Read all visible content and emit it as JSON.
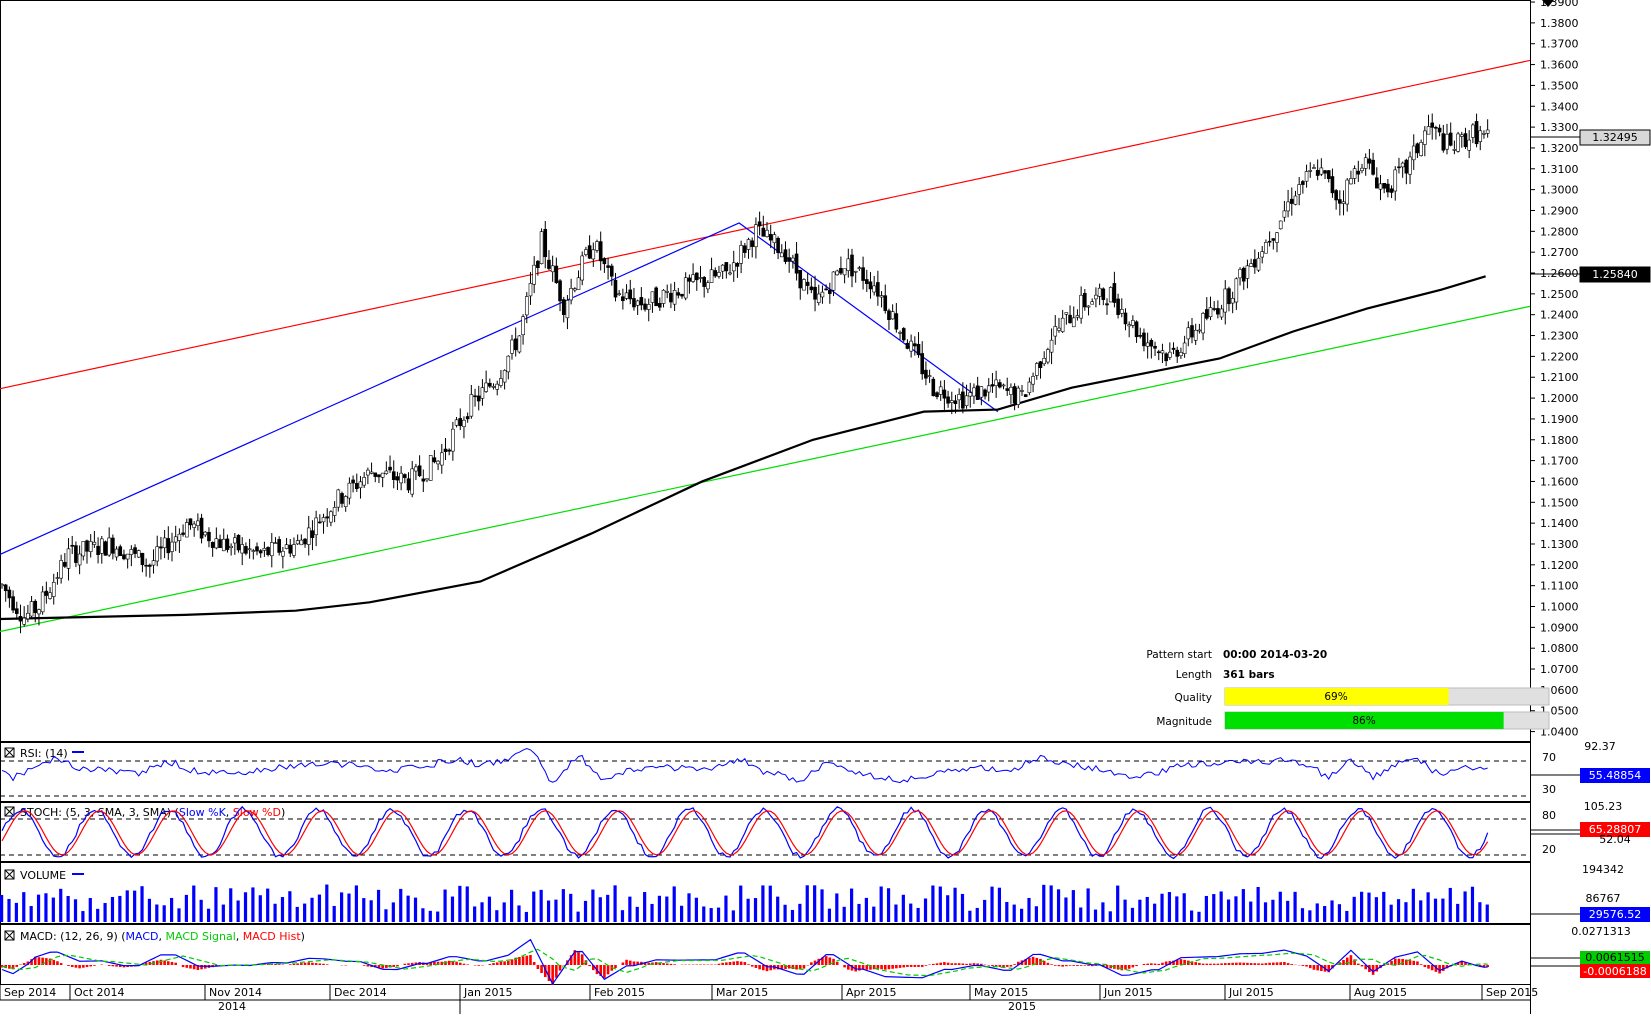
{
  "chart_data": {
    "type": "candlestick",
    "instrument_last_price": "1.32495",
    "moving_average_value": "1.25840",
    "x_ticks": [
      "Sep 2014",
      "Oct 2014",
      "Nov 2014",
      "Dec 2014",
      "Jan 2015",
      "Feb 2015",
      "Mar 2015",
      "Apr 2015",
      "May 2015",
      "Jun 2015",
      "Jul 2015",
      "Aug 2015",
      "Sep 2015"
    ],
    "year_labels": [
      "2014",
      "2015"
    ],
    "ylim": [
      1.035,
      1.3905
    ],
    "y_ticks": [
      "1.3900",
      "1.3800",
      "1.3700",
      "1.3600",
      "1.3500",
      "1.3400",
      "1.3300",
      "1.3200",
      "1.3100",
      "1.3000",
      "1.2900",
      "1.2800",
      "1.2700",
      "1.2600",
      "1.2500",
      "1.2400",
      "1.2300",
      "1.2200",
      "1.2100",
      "1.2000",
      "1.1900",
      "1.1800",
      "1.1700",
      "1.1600",
      "1.1500",
      "1.1400",
      "1.1300",
      "1.1200",
      "1.1100",
      "1.1000",
      "1.0900",
      "1.0800",
      "1.0700",
      "1.0600",
      "1.0500",
      "1.0400"
    ],
    "price_path": [
      [
        0,
        1.11
      ],
      [
        6,
        1.095
      ],
      [
        10,
        1.1
      ],
      [
        18,
        1.125
      ],
      [
        30,
        1.13
      ],
      [
        40,
        1.12
      ],
      [
        50,
        1.14
      ],
      [
        60,
        1.13
      ],
      [
        70,
        1.125
      ],
      [
        80,
        1.13
      ],
      [
        90,
        1.15
      ],
      [
        100,
        1.165
      ],
      [
        110,
        1.16
      ],
      [
        118,
        1.17
      ],
      [
        126,
        1.195
      ],
      [
        134,
        1.21
      ],
      [
        140,
        1.23
      ],
      [
        146,
        1.275
      ],
      [
        152,
        1.245
      ],
      [
        160,
        1.275
      ],
      [
        166,
        1.25
      ],
      [
        174,
        1.245
      ],
      [
        180,
        1.25
      ],
      [
        188,
        1.255
      ],
      [
        196,
        1.26
      ],
      [
        204,
        1.28
      ],
      [
        212,
        1.27
      ],
      [
        220,
        1.245
      ],
      [
        228,
        1.265
      ],
      [
        236,
        1.255
      ],
      [
        244,
        1.23
      ],
      [
        252,
        1.205
      ],
      [
        260,
        1.2
      ],
      [
        268,
        1.205
      ],
      [
        276,
        1.2
      ],
      [
        284,
        1.23
      ],
      [
        292,
        1.245
      ],
      [
        300,
        1.25
      ],
      [
        308,
        1.23
      ],
      [
        316,
        1.22
      ],
      [
        324,
        1.235
      ],
      [
        332,
        1.25
      ],
      [
        338,
        1.265
      ],
      [
        344,
        1.28
      ],
      [
        350,
        1.3
      ],
      [
        356,
        1.31
      ],
      [
        362,
        1.295
      ],
      [
        368,
        1.315
      ],
      [
        374,
        1.3
      ],
      [
        380,
        1.31
      ],
      [
        386,
        1.33
      ],
      [
        392,
        1.32
      ],
      [
        398,
        1.327
      ],
      [
        402,
        1.325
      ]
    ],
    "lines": {
      "red_resistance": {
        "from": [
          0,
          1.2045
        ],
        "to": [
          414,
          1.362
        ]
      },
      "green_support": {
        "from": [
          0,
          1.088
        ],
        "to": [
          414,
          1.244
        ]
      },
      "blue_pattern": [
        [
          0,
          1.125
        ],
        [
          200,
          1.284
        ],
        [
          270,
          1.1935
        ]
      ]
    },
    "ma_path": [
      [
        0,
        1.094
      ],
      [
        50,
        1.096
      ],
      [
        80,
        1.098
      ],
      [
        100,
        1.102
      ],
      [
        130,
        1.112
      ],
      [
        160,
        1.135
      ],
      [
        190,
        1.16
      ],
      [
        220,
        1.18
      ],
      [
        250,
        1.1935
      ],
      [
        270,
        1.1945
      ],
      [
        290,
        1.205
      ],
      [
        310,
        1.212
      ],
      [
        330,
        1.219
      ],
      [
        350,
        1.232
      ],
      [
        370,
        1.243
      ],
      [
        390,
        1.252
      ],
      [
        402,
        1.2584
      ]
    ],
    "pattern_info": {
      "start_label": "Pattern start",
      "start_value": "00:00 2014-03-20",
      "length_label": "Length",
      "length_value": "361 bars",
      "quality_label": "Quality",
      "quality_value": "69%",
      "quality": 0.69,
      "quality_color": "#ffff00",
      "magnitude_label": "Magnitude",
      "magnitude_value": "86%",
      "magnitude": 0.86,
      "magnitude_color": "#00e000"
    },
    "panels": {
      "rsi": {
        "title": "RSI: (14)",
        "top": "92.37",
        "levels": [
          "70",
          "30"
        ],
        "value": "55.48854"
      },
      "stoch": {
        "title_prefix": "STOCH: (5, 3, SMA, 3, SMA)",
        "slowk": "Slow %K",
        "slowd": "Slow %D",
        "top": "105.23",
        "levels": [
          "80",
          "20"
        ],
        "value": "65.28807",
        "hidden_value": "52.04"
      },
      "volume": {
        "title": "VOLUME",
        "top": "194342",
        "mid": "86767",
        "value": "29576.52"
      },
      "macd": {
        "title_prefix": "MACD: (12, 26, 9)",
        "macd": "MACD",
        "signal": "MACD Signal",
        "hist": "MACD Hist",
        "top": "0.0271313",
        "value1": "0.0061515",
        "value2": "-0.0006188"
      }
    },
    "colors": {
      "red": "#ff0000",
      "green": "#00dd00",
      "blue": "#0000ff",
      "ma": "#000000"
    }
  }
}
